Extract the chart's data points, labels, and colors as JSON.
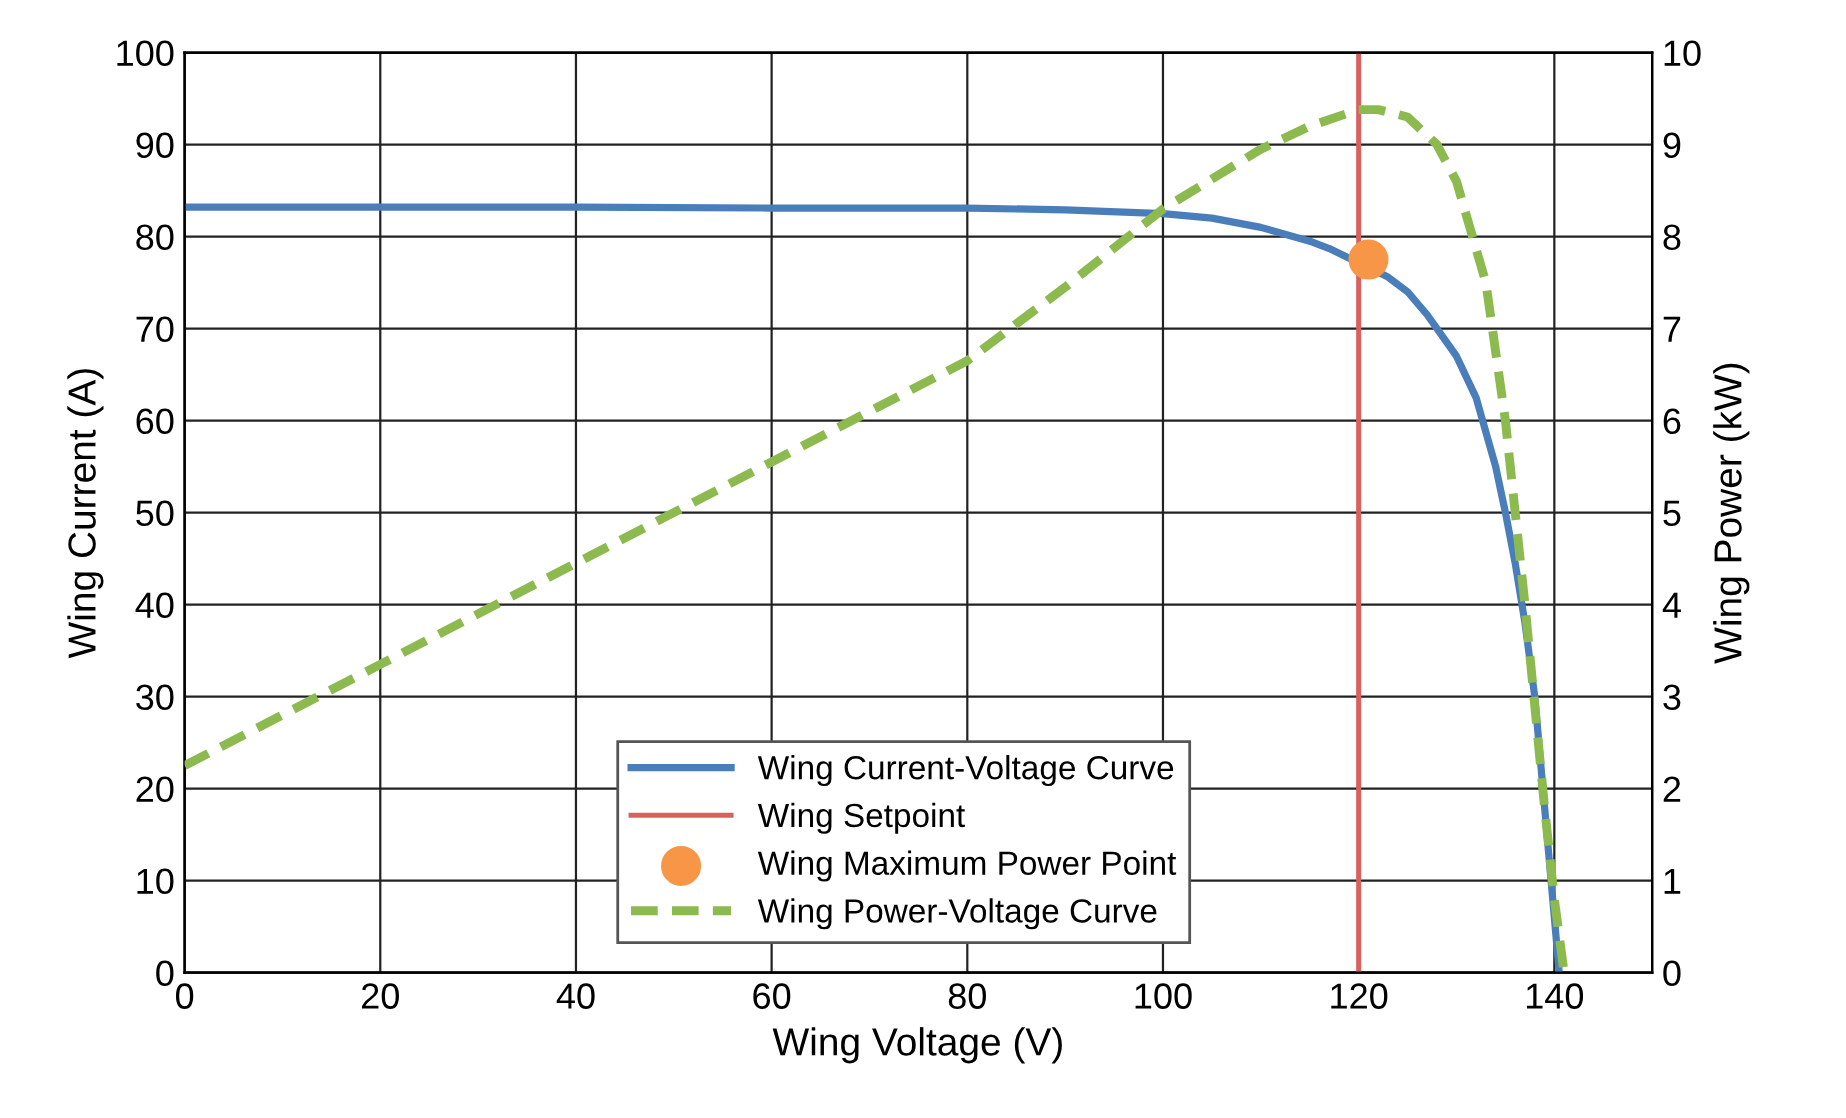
{
  "chart_data": {
    "type": "line",
    "xlabel": "Wing Voltage (V)",
    "ylabel": "Wing Current (A)",
    "y2label": "Wing Power (kW)",
    "xlim": [
      0,
      150
    ],
    "xticks": [
      0,
      20,
      40,
      60,
      80,
      100,
      120,
      140
    ],
    "ylim": [
      0,
      100
    ],
    "yticks": [
      0,
      10,
      20,
      30,
      40,
      50,
      60,
      70,
      80,
      90,
      100
    ],
    "y2lim": [
      0,
      10
    ],
    "y2ticks": [
      0,
      1,
      2,
      3,
      4,
      5,
      6,
      7,
      8,
      9,
      10
    ],
    "grid": true,
    "legend": "bottom",
    "series": [
      {
        "name": "Wing Current-Voltage Curve",
        "color": "#4a7ebb",
        "line_style": "solid",
        "marker": "none",
        "x": [
          0,
          20,
          40,
          60,
          80,
          90,
          100,
          105,
          110,
          115,
          117,
          123,
          125,
          127,
          130,
          132,
          134,
          135,
          136,
          137,
          138,
          139,
          140,
          140.5
        ],
        "values": [
          83.2,
          83.2,
          83.2,
          83.1,
          83.1,
          82.9,
          82.5,
          82,
          81,
          79.5,
          78.7,
          75.6,
          74,
          71.5,
          67,
          62.5,
          55,
          50,
          44.5,
          38,
          30,
          18,
          6,
          0
        ]
      },
      {
        "name": "Wing Setpoint",
        "color": "#d9605e",
        "line_style": "solid",
        "marker": "none",
        "x": [
          120,
          120
        ],
        "values": [
          0,
          100
        ]
      },
      {
        "name": "Wing Maximum Power Point",
        "type": "scatter",
        "color": "#f79646",
        "marker": "circle",
        "x": [
          121
        ],
        "values": [
          77.5
        ]
      },
      {
        "name": "Wing Power-Voltage Curve",
        "axis": "y2",
        "color": "#8cba4f",
        "line_style": "dashed",
        "marker": "none",
        "x": [
          0,
          20,
          40,
          60,
          80,
          90,
          100,
          110,
          115,
          120,
          122,
          125,
          128,
          130,
          133,
          135,
          137,
          138,
          139,
          140,
          141
        ],
        "values": [
          2.25,
          3.35,
          4.45,
          5.55,
          6.65,
          7.45,
          8.3,
          8.95,
          9.2,
          9.38,
          9.38,
          9.3,
          9.0,
          8.6,
          7.5,
          6.0,
          4.0,
          2.9,
          1.8,
          0.8,
          0
        ]
      }
    ]
  }
}
